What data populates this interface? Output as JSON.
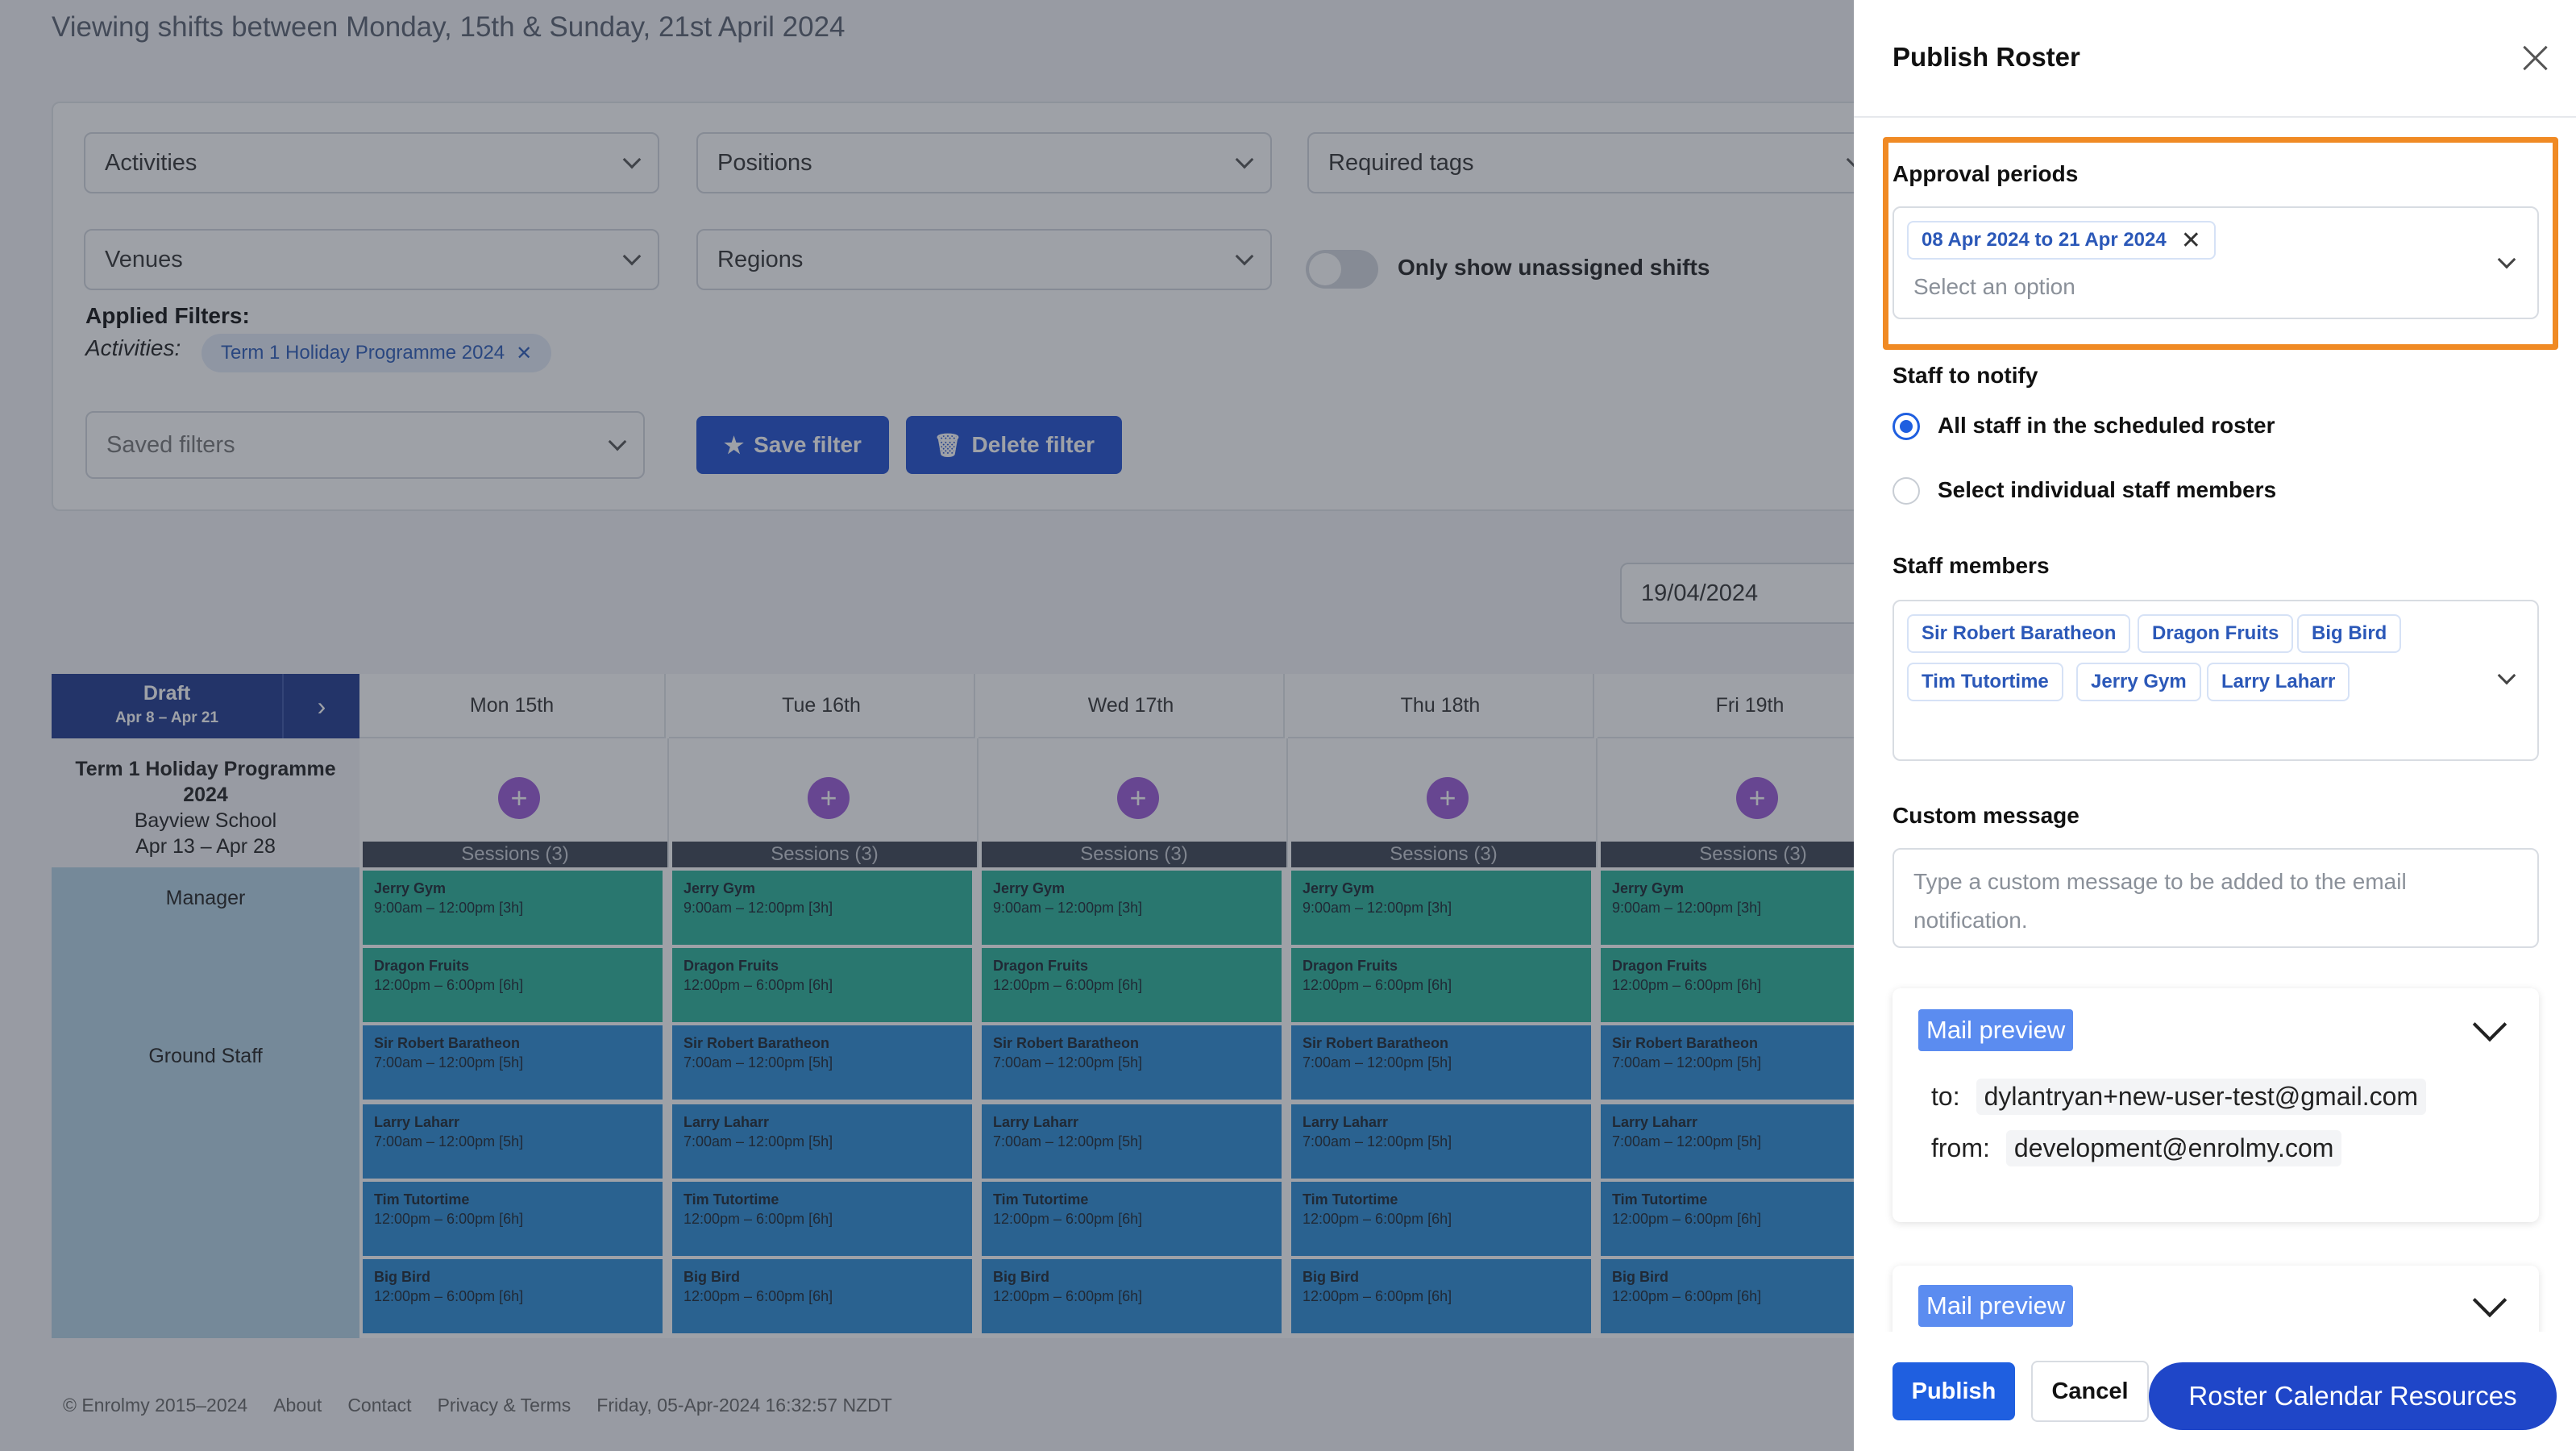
{
  "page": {
    "title": "Viewing shifts between Monday, 15th & Sunday, 21st April 2024"
  },
  "filters": {
    "activities": "Activities",
    "positions": "Positions",
    "required_tags": "Required tags",
    "venues": "Venues",
    "regions": "Regions",
    "unassigned_toggle": "Only show unassigned shifts",
    "applied_title": "Applied Filters:",
    "applied_key": "Activities:",
    "applied_value": "Term 1 Holiday Programme 2024",
    "saved_filters": "Saved filters",
    "save_filter": "Save filter",
    "delete_filter": "Delete filter",
    "date_value": "19/04/2024"
  },
  "calendar": {
    "draft_title": "Draft",
    "draft_range": "Apr 8 – Apr 21",
    "days": [
      "Mon 15th",
      "Tue 16th",
      "Wed 17th",
      "Thu 18th",
      "Fri 19th"
    ],
    "programme": {
      "name": "Term 1 Holiday Programme 2024",
      "venue": "Bayview School",
      "range": "Apr 13 – Apr 28"
    },
    "sessions_label": "Sessions (3)",
    "roles": [
      "Manager",
      "Ground Staff"
    ],
    "shifts": [
      {
        "name": "Jerry Gym",
        "time": "9:00am – 12:00pm [3h]"
      },
      {
        "name": "Dragon Fruits",
        "time": "12:00pm – 6:00pm [6h]"
      },
      {
        "name": "Sir Robert Baratheon",
        "time": "7:00am – 12:00pm [5h]"
      },
      {
        "name": "Larry Laharr",
        "time": "7:00am – 12:00pm [5h]"
      },
      {
        "name": "Tim Tutortime",
        "time": "12:00pm – 6:00pm [6h]"
      },
      {
        "name": "Big Bird",
        "time": "12:00pm – 6:00pm [6h]"
      }
    ]
  },
  "footer": {
    "copyright": "© Enrolmy  2015–2024",
    "about": "About",
    "contact": "Contact",
    "privacy": "Privacy & Terms",
    "timestamp": "Friday, 05-Apr-2024 16:32:57 NZDT"
  },
  "drawer": {
    "title": "Publish Roster",
    "approval_label": "Approval periods",
    "approval_tag": "08 Apr 2024 to 21 Apr 2024",
    "approval_placeholder": "Select an option",
    "notify_label": "Staff to notify",
    "option_all": "All staff in the scheduled roster",
    "option_individual": "Select individual staff members",
    "selected_option": "all",
    "staff_label": "Staff members",
    "staff": [
      "Sir Robert Baratheon",
      "Dragon Fruits",
      "Big Bird",
      "Tim Tutortime",
      "Jerry Gym",
      "Larry Laharr"
    ],
    "custom_label": "Custom message",
    "custom_placeholder": "Type a custom message to be added to the email notification.",
    "mail_preview_label": "Mail preview",
    "mail_to_key": "to:",
    "mail_to": "dylantryan+new-user-test@gmail.com",
    "mail_from_key": "from:",
    "mail_from": "development@enrolmy.com",
    "publish": "Publish",
    "cancel": "Cancel"
  },
  "floating": {
    "resources": "Roster Calendar Resources"
  },
  "colors": {
    "primary": "#1f5fe0",
    "highlight": "#f08a24",
    "manager_shift": "#2ab39a",
    "ground_shift": "#2d8cd6"
  }
}
